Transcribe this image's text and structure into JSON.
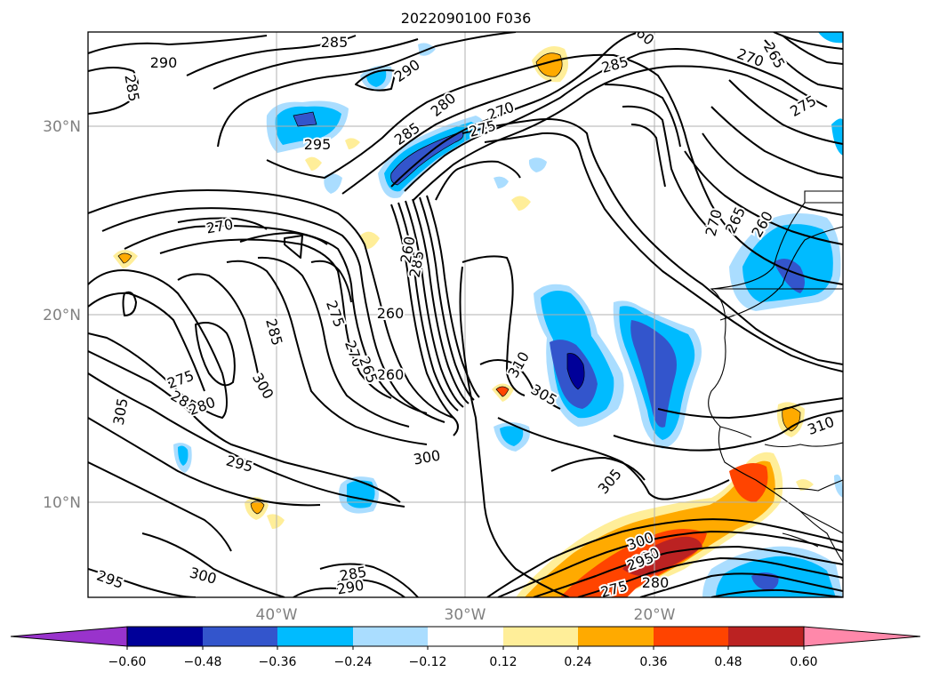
{
  "title": "2022090100 F036",
  "map": {
    "lat_labels": [
      "30°N",
      "20°N",
      "10°N"
    ],
    "lon_labels": [
      "40°W",
      "30°W",
      "20°W"
    ],
    "grid": true
  },
  "contours": {
    "color": "#000000",
    "labels": [
      "285",
      "290",
      "285",
      "290",
      "285",
      "280",
      "270",
      "275",
      "285",
      "60",
      "265",
      "270",
      "275",
      "295",
      "285",
      "270",
      "275",
      "260",
      "260",
      "270",
      "260",
      "265",
      "270",
      "265",
      "260",
      "285",
      "275",
      "300",
      "285",
      "280",
      "305",
      "310",
      "305",
      "310",
      "295",
      "300",
      "305",
      "300",
      "295",
      "290",
      "285",
      "290",
      "280",
      "275",
      "300",
      "295"
    ]
  },
  "colorbar": {
    "ticks": [
      "−0.60",
      "−0.48",
      "−0.36",
      "−0.24",
      "−0.12",
      "0.12",
      "0.24",
      "0.36",
      "0.48",
      "0.60"
    ],
    "colors": [
      "#9933cc",
      "#000099",
      "#3355cc",
      "#00bbff",
      "#aaddff",
      "#ffffff",
      "#ffee99",
      "#ffaa00",
      "#ff4400",
      "#bb2222",
      "#ff88aa"
    ],
    "extend": "both"
  }
}
